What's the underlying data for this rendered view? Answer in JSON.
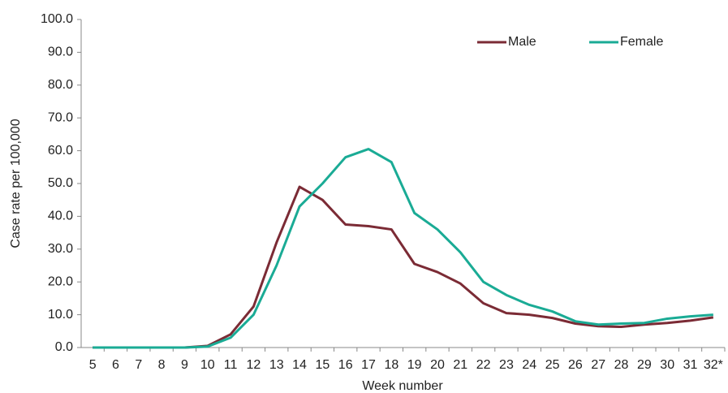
{
  "chart_data": {
    "type": "line",
    "y_label": "Case rate per 100,000",
    "x_label": "Week number",
    "categories": [
      "5",
      "6",
      "7",
      "8",
      "9",
      "10",
      "11",
      "12",
      "13",
      "14",
      "15",
      "16",
      "17",
      "18",
      "19",
      "20",
      "21",
      "22",
      "23",
      "24",
      "25",
      "26",
      "27",
      "28",
      "29",
      "30",
      "31",
      "32*"
    ],
    "series": [
      {
        "name": "Male",
        "color": "#7b2b35",
        "values": [
          0,
          0,
          0,
          0,
          0,
          0.5,
          4,
          12.5,
          32,
          49,
          45,
          37.5,
          37,
          36,
          25.5,
          23,
          19.5,
          13.5,
          10.5,
          10,
          9,
          7.3,
          6.5,
          6.3,
          7,
          7.5,
          8.2,
          9.2
        ]
      },
      {
        "name": "Female",
        "color": "#1aab95",
        "values": [
          0,
          0,
          0,
          0,
          0,
          0.3,
          3,
          10,
          25,
          43,
          50,
          58,
          60.5,
          56.5,
          41,
          36,
          29,
          20,
          16,
          13,
          11,
          8,
          7,
          7.3,
          7.5,
          8.8,
          9.5,
          10
        ]
      }
    ],
    "ylim": [
      0,
      100
    ],
    "yticks": [
      {
        "value": 0,
        "label": "0.0"
      },
      {
        "value": 10,
        "label": "10.0"
      },
      {
        "value": 20,
        "label": "20.0"
      },
      {
        "value": 30,
        "label": "30.0"
      },
      {
        "value": 40,
        "label": "40.0"
      },
      {
        "value": 50,
        "label": "50.0"
      },
      {
        "value": 60,
        "label": "60.0"
      },
      {
        "value": 70,
        "label": "70.0"
      },
      {
        "value": 80,
        "label": "80.0"
      },
      {
        "value": 90,
        "label": "90.0"
      },
      {
        "value": 100,
        "label": "100.0"
      }
    ],
    "legend": "top-right"
  }
}
